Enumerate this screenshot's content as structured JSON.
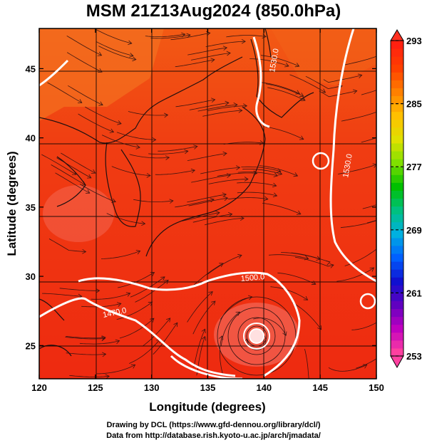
{
  "title": "MSM 21Z13Aug2024 (850.0hPa)",
  "x_axis": {
    "label": "Longitude (degrees)",
    "ticks": [
      {
        "value": 120,
        "label": "120"
      },
      {
        "value": 125,
        "label": "125"
      },
      {
        "value": 130,
        "label": "130"
      },
      {
        "value": 135,
        "label": "135"
      },
      {
        "value": 140,
        "label": "140"
      },
      {
        "value": 145,
        "label": "145"
      },
      {
        "value": 150,
        "label": "150"
      }
    ]
  },
  "y_axis": {
    "label": "Latitude (degrees)",
    "ticks": [
      {
        "value": 25,
        "label": "25"
      },
      {
        "value": 30,
        "label": "30"
      },
      {
        "value": 35,
        "label": "35"
      },
      {
        "value": 40,
        "label": "40"
      },
      {
        "value": 45,
        "label": "45"
      }
    ]
  },
  "colorbar": {
    "min": 253,
    "max": 293,
    "labels": [
      "293",
      "285",
      "277",
      "269",
      "261",
      "253"
    ],
    "colors": [
      "#ff0080",
      "#a000c0",
      "#2020e0",
      "#00a0ff",
      "#00d0c0",
      "#00c040",
      "#80e000",
      "#e8e800",
      "#ffb000",
      "#ff6000",
      "#ff2000"
    ]
  },
  "contours": [
    {
      "label": "1470.0"
    },
    {
      "label": "1500.0"
    },
    {
      "label": "1530.0"
    },
    {
      "label": "1530.0"
    }
  ],
  "credits": {
    "line1": "Drawing by DCL (https://www.gfd-dennou.org/library/dcl/)",
    "line2": "Data from http://database.rish.kyoto-u.ac.jp/arch/jmadata/"
  }
}
